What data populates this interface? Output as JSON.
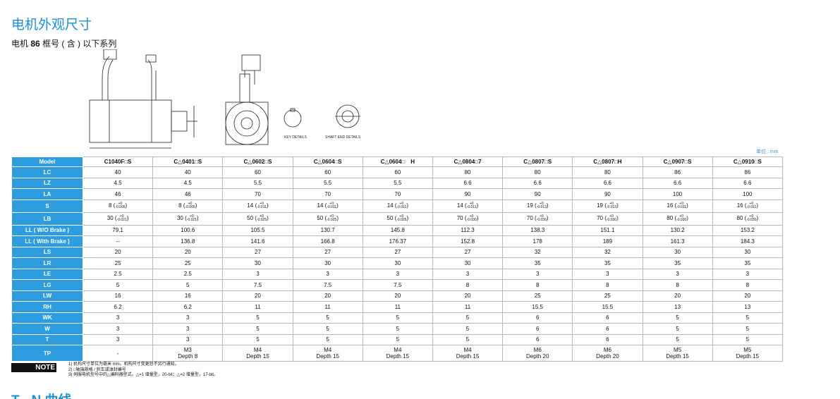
{
  "header": {
    "title": "电机外观尺寸",
    "subtitle_prefix": "电机",
    "subtitle_frame": "86",
    "subtitle_suffix": "框号 ( 含 ) 以下系列"
  },
  "drawing": {
    "key_details": "KEY DETAILS",
    "shaft_end_details": "SHAFT END DETAILS"
  },
  "unit": "单位 : mm",
  "table": {
    "columns": [
      "Model",
      "C1040F□S",
      "C△0401□S",
      "C△0602□S",
      "C△0604□S",
      "C△0604□　H",
      "C△0804□7",
      "C△0807□S",
      "C△0807□H",
      "C△0907□S",
      "C△0910□S"
    ],
    "rows": [
      {
        "label": "LC",
        "cells": [
          "40",
          "40",
          "60",
          "60",
          "60",
          "80",
          "80",
          "80",
          "86",
          "86"
        ]
      },
      {
        "label": "LZ",
        "cells": [
          "4.5",
          "4.5",
          "5.5",
          "5.5",
          "5.5",
          "6.6",
          "6.6",
          "6.6",
          "6.6",
          "6.6"
        ]
      },
      {
        "label": "LA",
        "cells": [
          "46",
          "46",
          "70",
          "70",
          "70",
          "90",
          "90",
          "90",
          "100",
          "100"
        ]
      },
      {
        "label": "S",
        "cells": [
          {
            "nominal": "8 (",
            "upper": "+0",
            "lower": "-0.009",
            "close": ")"
          },
          {
            "nominal": "8 (",
            "upper": "+0",
            "lower": "-0.009",
            "close": ")"
          },
          {
            "nominal": "14 (",
            "upper": "+0",
            "lower": "-0.011",
            "close": ")"
          },
          {
            "nominal": "14 (",
            "upper": "+0",
            "lower": "-0.011",
            "close": ")"
          },
          {
            "nominal": "14 (",
            "upper": "+0",
            "lower": "-0.011",
            "close": ")"
          },
          {
            "nominal": "14 (",
            "upper": "+0",
            "lower": "-0.011",
            "close": ")"
          },
          {
            "nominal": "19 (",
            "upper": "+0",
            "lower": "-0.013",
            "close": ")"
          },
          {
            "nominal": "19 (",
            "upper": "+0",
            "lower": "-0.013",
            "close": ")"
          },
          {
            "nominal": "16 (",
            "upper": "+0",
            "lower": "-0.011",
            "close": ")"
          },
          {
            "nominal": "16 (",
            "upper": "+0",
            "lower": "-0.011",
            "close": ")"
          }
        ]
      },
      {
        "label": "LB",
        "cells": [
          {
            "nominal": "30 (",
            "upper": "+0",
            "lower": "-0.021",
            "close": ")"
          },
          {
            "nominal": "30 (",
            "upper": "+0",
            "lower": "-0.021",
            "close": ")"
          },
          {
            "nominal": "50 (",
            "upper": "+0",
            "lower": "-0.025",
            "close": ")"
          },
          {
            "nominal": "50 (",
            "upper": "+0",
            "lower": "-0.025",
            "close": ")"
          },
          {
            "nominal": "50 (",
            "upper": "+0",
            "lower": "-0.025",
            "close": ")"
          },
          {
            "nominal": "70 (",
            "upper": "+0",
            "lower": "-0.030",
            "close": ")"
          },
          {
            "nominal": "70 (",
            "upper": "+0",
            "lower": "-0.030",
            "close": ")"
          },
          {
            "nominal": "70 (",
            "upper": "+0",
            "lower": "-0.030",
            "close": ")"
          },
          {
            "nominal": "80 (",
            "upper": "+0",
            "lower": "-0.030",
            "close": ")"
          },
          {
            "nominal": "80 (",
            "upper": "+0",
            "lower": "-0.030",
            "close": ")"
          }
        ]
      },
      {
        "label": "LL ( W/O Brake )",
        "cells": [
          "79.1",
          "100.6",
          "105.5",
          "130.7",
          "145.8",
          "112.3",
          "138.3",
          "151.1",
          "130.2",
          "153.2"
        ]
      },
      {
        "label": "LL ( With Brake )",
        "cells": [
          "--",
          "136.8",
          "141.6",
          "166.8",
          "176.37",
          "152.8",
          "178",
          "189",
          "161.3",
          "184.3"
        ]
      },
      {
        "label": "LS",
        "cells": [
          "20",
          "20",
          "27",
          "27",
          "27",
          "27",
          "32",
          "32",
          "30",
          "30"
        ]
      },
      {
        "label": "LR",
        "cells": [
          "25",
          "25",
          "30",
          "30",
          "30",
          "30",
          "35",
          "35",
          "35",
          "35"
        ]
      },
      {
        "label": "LE",
        "cells": [
          "2.5",
          "2.5",
          "3",
          "3",
          "3",
          "3",
          "3",
          "3",
          "3",
          "3"
        ]
      },
      {
        "label": "LG",
        "cells": [
          "5",
          "5",
          "7.5",
          "7.5",
          "7.5",
          "8",
          "8",
          "8",
          "8",
          "8"
        ]
      },
      {
        "label": "LW",
        "cells": [
          "16",
          "16",
          "20",
          "20",
          "20",
          "20",
          "25",
          "25",
          "20",
          "20"
        ]
      },
      {
        "label": "RH",
        "cells": [
          "6.2",
          "6.2",
          "11",
          "11",
          "11",
          "11",
          "15.5",
          "15.5",
          "13",
          "13"
        ]
      },
      {
        "label": "WK",
        "cells": [
          "3",
          "3",
          "5",
          "5",
          "5",
          "5",
          "6",
          "6",
          "5",
          "5"
        ]
      },
      {
        "label": "W",
        "cells": [
          "3",
          "3",
          "5",
          "5",
          "5",
          "5",
          "6",
          "6",
          "5",
          "5"
        ]
      },
      {
        "label": "T",
        "cells": [
          "3",
          "3",
          "5",
          "5",
          "5",
          "5",
          "6",
          "6",
          "5",
          "5"
        ]
      },
      {
        "label": "TP",
        "cells": [
          [
            "-"
          ],
          [
            "M3",
            "Depth 8"
          ],
          [
            "M4",
            "Depth 15"
          ],
          [
            "M4",
            "Depth 15"
          ],
          [
            "M4",
            "Depth 15"
          ],
          [
            "M4",
            "Depth 15"
          ],
          [
            "M6",
            "Depth 20"
          ],
          [
            "M6",
            "Depth 20"
          ],
          [
            "M5",
            "Depth 15"
          ],
          [
            "M5",
            "Depth 15"
          ]
        ]
      }
    ]
  },
  "note": {
    "badge": "NOTE",
    "items": [
      "1) 机构尺寸单位为毫米 mm。机构尺寸变更恕不另行通知。",
      "2) □轴端规格 / 刹车或油封编号",
      "3) 伺服电机型号中的△编码器型式。△=1 增量型，20-bit；△=2 增量型，17-bit。"
    ]
  },
  "next_section": "T - N 曲线"
}
